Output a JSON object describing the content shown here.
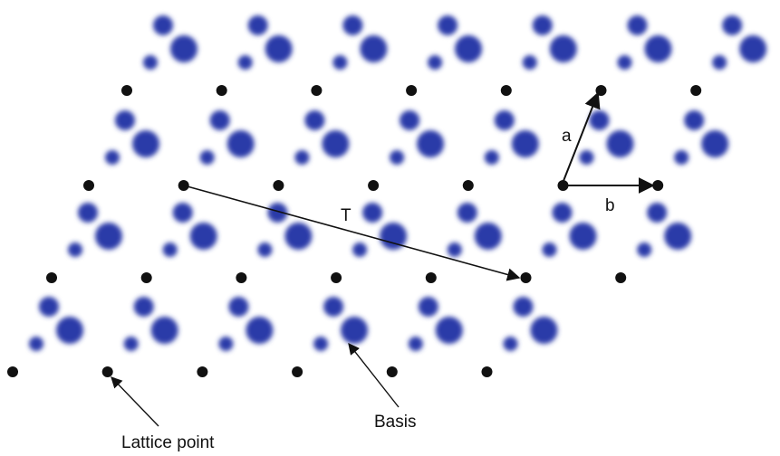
{
  "labels": {
    "vector_a": "a",
    "vector_b": "b",
    "translation": "T",
    "basis": "Basis",
    "lattice_point": "Lattice point"
  },
  "colors": {
    "atom": "#2b3aa8",
    "lattice_point": "#111111",
    "line": "#111111",
    "background": "#ffffff"
  }
}
